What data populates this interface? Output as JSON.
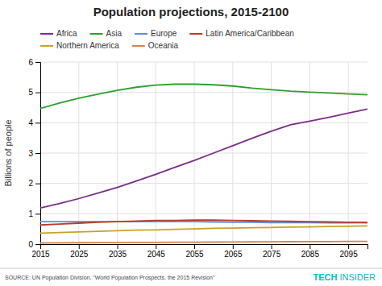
{
  "chart_data": {
    "type": "line",
    "title": "Population projections, 2015-2100",
    "ylabel": "Billions of people",
    "annotations": [
      "SOURCE: UN Population Division, \"World Population Prospects, the 2015 Revision\"",
      "TECH",
      "INSIDER"
    ],
    "x": [
      2015,
      2020,
      2025,
      2030,
      2035,
      2040,
      2045,
      2050,
      2055,
      2060,
      2065,
      2070,
      2075,
      2080,
      2085,
      2090,
      2095,
      2100
    ],
    "series": [
      {
        "name": "Africa",
        "color": "#7b2d8b",
        "values": [
          1.19,
          1.34,
          1.5,
          1.68,
          1.87,
          2.08,
          2.3,
          2.53,
          2.76,
          3.0,
          3.24,
          3.49,
          3.72,
          3.93,
          4.05,
          4.18,
          4.32,
          4.45
        ]
      },
      {
        "name": "Asia",
        "color": "#2ca02c",
        "values": [
          4.47,
          4.65,
          4.81,
          4.94,
          5.07,
          5.17,
          5.24,
          5.27,
          5.27,
          5.25,
          5.21,
          5.14,
          5.09,
          5.04,
          5.01,
          4.98,
          4.95,
          4.92
        ]
      },
      {
        "name": "Europe",
        "color": "#5b8dd9",
        "values": [
          0.74,
          0.74,
          0.74,
          0.74,
          0.74,
          0.74,
          0.74,
          0.74,
          0.74,
          0.73,
          0.72,
          0.72,
          0.71,
          0.71,
          0.71,
          0.7,
          0.7,
          0.71
        ]
      },
      {
        "name": "Latin America/Caribbean",
        "color": "#c0392b",
        "values": [
          0.63,
          0.66,
          0.69,
          0.72,
          0.74,
          0.76,
          0.78,
          0.78,
          0.79,
          0.79,
          0.78,
          0.77,
          0.76,
          0.75,
          0.74,
          0.73,
          0.72,
          0.71
        ]
      },
      {
        "name": "Northern America",
        "color": "#c9a227",
        "values": [
          0.36,
          0.38,
          0.4,
          0.42,
          0.44,
          0.46,
          0.47,
          0.49,
          0.5,
          0.52,
          0.53,
          0.54,
          0.55,
          0.56,
          0.57,
          0.58,
          0.59,
          0.6
        ]
      },
      {
        "name": "Oceania",
        "color": "#d6854a",
        "values": [
          0.039,
          0.042,
          0.046,
          0.049,
          0.052,
          0.055,
          0.058,
          0.061,
          0.064,
          0.067,
          0.07,
          0.073,
          0.076,
          0.079,
          0.082,
          0.085,
          0.087,
          0.09
        ]
      }
    ],
    "xlim": [
      2015,
      2100
    ],
    "ylim": [
      0,
      6
    ],
    "xticks": [
      2015,
      2025,
      2035,
      2045,
      2055,
      2065,
      2075,
      2085,
      2095
    ],
    "yticks": [
      0,
      1,
      2,
      3,
      4,
      5,
      6
    ],
    "grid": true,
    "legend": "top"
  }
}
